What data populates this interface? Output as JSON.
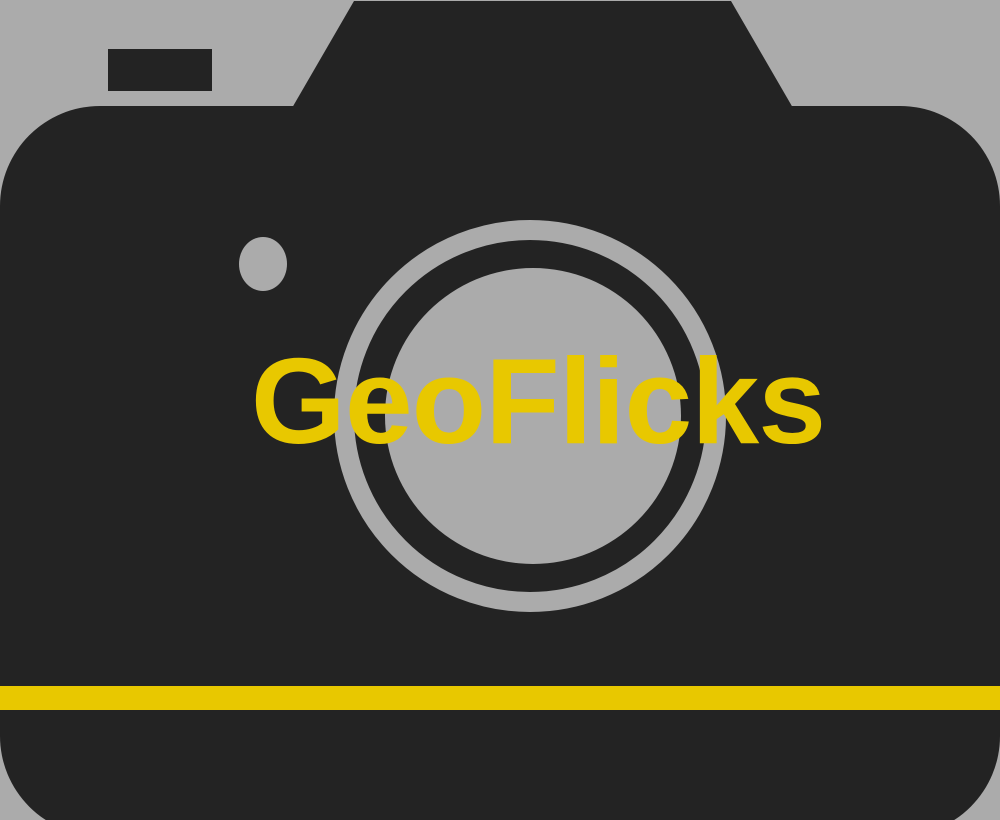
{
  "logo": {
    "text": "GeoFlicks",
    "icon": "camera-icon"
  },
  "colors": {
    "background": "#ababab",
    "camera_body": "#232323",
    "lens_glass": "#ababab",
    "lens_ring": "#ababab",
    "accent": "#e8c800"
  }
}
